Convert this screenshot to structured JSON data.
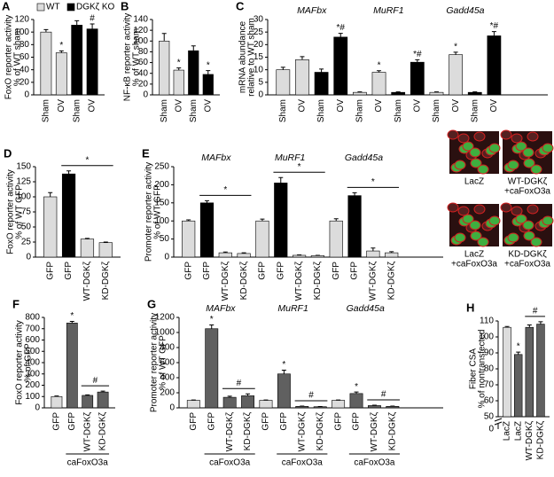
{
  "chart_data": [
    {
      "type": "bar",
      "panel": "A",
      "ylabel": [
        "FoxO reporter activity",
        "% of WT sham"
      ],
      "ylim": [
        0,
        120
      ],
      "yticks": [
        0,
        20,
        40,
        60,
        80,
        100,
        120
      ],
      "legend": [
        {
          "name": "WT",
          "color": "#dcdcdc"
        },
        {
          "name": "DGKζ KO",
          "color": "#000000"
        }
      ],
      "groups": [
        {
          "categories": [
            "Sham",
            "OV",
            "Sham",
            "OV"
          ],
          "values": [
            100,
            67,
            111,
            105
          ],
          "errors": [
            4,
            3,
            7,
            8
          ],
          "colors": [
            "#dcdcdc",
            "#dcdcdc",
            "#000000",
            "#000000"
          ],
          "markers": [
            null,
            "*",
            null,
            "#"
          ]
        }
      ]
    },
    {
      "type": "bar",
      "panel": "B",
      "ylabel": [
        "NF-κB reporter activity",
        "% of WT sham"
      ],
      "ylim": [
        0,
        140
      ],
      "yticks": [
        0,
        20,
        40,
        60,
        80,
        100,
        120,
        140
      ],
      "groups": [
        {
          "categories": [
            "Sham",
            "OV",
            "Sham",
            "OV"
          ],
          "values": [
            100,
            46,
            82,
            38
          ],
          "errors": [
            14,
            4,
            9,
            7
          ],
          "colors": [
            "#dcdcdc",
            "#dcdcdc",
            "#000000",
            "#000000"
          ],
          "markers": [
            null,
            "*",
            null,
            "*"
          ]
        }
      ]
    },
    {
      "type": "bar",
      "panel": "C",
      "ylabel": [
        "mRNA abundance",
        "relative to  WT sham"
      ],
      "ylim": [
        0,
        30
      ],
      "yticks": [
        0,
        5,
        10,
        15,
        20,
        25,
        30
      ],
      "groups": [
        {
          "name": "MAFbx",
          "categories": [
            "Sham",
            "OV",
            "Sham",
            "OV"
          ],
          "values": [
            10,
            14,
            9,
            23
          ],
          "errors": [
            1,
            1.2,
            1.3,
            1.5
          ],
          "colors": [
            "#dcdcdc",
            "#dcdcdc",
            "#000000",
            "#000000"
          ],
          "markers": [
            null,
            null,
            null,
            "*#"
          ]
        },
        {
          "name": "MuRF1",
          "categories": [
            "Sham",
            "OV",
            "Sham",
            "OV"
          ],
          "values": [
            1,
            9,
            1,
            13
          ],
          "errors": [
            0.2,
            0.6,
            0.2,
            1
          ],
          "colors": [
            "#dcdcdc",
            "#dcdcdc",
            "#000000",
            "#000000"
          ],
          "markers": [
            null,
            "*",
            null,
            "*#"
          ]
        },
        {
          "name": "Gadd45a",
          "categories": [
            "Sham",
            "OV",
            "Sham",
            "OV"
          ],
          "values": [
            1,
            16,
            1,
            23.5
          ],
          "errors": [
            0.2,
            1,
            0.2,
            1.7
          ],
          "colors": [
            "#dcdcdc",
            "#dcdcdc",
            "#000000",
            "#000000"
          ],
          "markers": [
            null,
            "*",
            null,
            "*#"
          ]
        }
      ]
    },
    {
      "type": "bar",
      "panel": "D",
      "ylabel": [
        "FoxO reporter activity",
        "% of WT GFP"
      ],
      "ylim": [
        0,
        150
      ],
      "yticks": [
        0,
        25,
        50,
        75,
        100,
        125,
        150
      ],
      "groups": [
        {
          "categories": [
            "GFP",
            "GFP",
            "WT-DGKζ",
            "KD-DGKζ"
          ],
          "values": [
            100,
            138,
            30,
            24
          ],
          "errors": [
            7,
            5,
            1,
            1
          ],
          "colors": [
            "#dcdcdc",
            "#000000",
            "#dcdcdc",
            "#dcdcdc"
          ],
          "brackets": [
            {
              "text": "*",
              "from": 1,
              "to": 3
            }
          ]
        }
      ]
    },
    {
      "type": "bar",
      "panel": "E",
      "ylabel": [
        "Promoter reporter activity",
        "% of WT GFP"
      ],
      "ylim": [
        0,
        250
      ],
      "yticks": [
        0,
        50,
        100,
        150,
        200,
        250
      ],
      "groups": [
        {
          "name": "MAFbx",
          "categories": [
            "GFP",
            "GFP",
            "WT-DGKζ",
            "KD-DGKζ"
          ],
          "values": [
            100,
            150,
            12,
            10
          ],
          "errors": [
            3,
            6,
            2,
            2
          ],
          "colors": [
            "#dcdcdc",
            "#000000",
            "#dcdcdc",
            "#dcdcdc"
          ],
          "brackets": [
            {
              "text": "*",
              "from": 1,
              "to": 3
            }
          ]
        },
        {
          "name": "MuRF1",
          "categories": [
            "GFP",
            "GFP",
            "WT-DGKζ",
            "KD-DGKζ"
          ],
          "values": [
            100,
            205,
            5,
            4
          ],
          "errors": [
            5,
            15,
            1,
            1
          ],
          "colors": [
            "#dcdcdc",
            "#000000",
            "#dcdcdc",
            "#dcdcdc"
          ],
          "brackets": [
            {
              "text": "*",
              "from": 1,
              "to": 3
            }
          ]
        },
        {
          "name": "Gadd45a",
          "categories": [
            "GFP",
            "GFP",
            "WT-DGKζ",
            "KD-DGKζ"
          ],
          "values": [
            100,
            170,
            17,
            12
          ],
          "errors": [
            6,
            8,
            8,
            3
          ],
          "colors": [
            "#dcdcdc",
            "#000000",
            "#dcdcdc",
            "#dcdcdc"
          ],
          "brackets": [
            {
              "text": "*",
              "from": 1,
              "to": 3
            }
          ]
        }
      ]
    },
    {
      "type": "bar",
      "panel": "F",
      "ylabel": [
        "FoxO reporter activity",
        "% of GFP"
      ],
      "ylim": [
        0,
        800
      ],
      "yticks": [
        0,
        100,
        200,
        300,
        400,
        500,
        600,
        700,
        800
      ],
      "groups": [
        {
          "categories": [
            "GFP",
            "GFP",
            "WT-DGKζ",
            "KD-DGKζ"
          ],
          "values": [
            100,
            750,
            110,
            140
          ],
          "errors": [
            5,
            15,
            5,
            8
          ],
          "colors": [
            "#dcdcdc",
            "#606060",
            "#606060",
            "#606060"
          ],
          "markers": [
            null,
            "*",
            null,
            null
          ],
          "brackets": [
            {
              "text": "#",
              "from": 2,
              "to": 3
            }
          ],
          "footer": "caFoxO3a"
        }
      ]
    },
    {
      "type": "bar",
      "panel": "G",
      "ylabel": [
        "Promoter reporter activity",
        "% of WT GFP"
      ],
      "ylim": [
        0,
        1200
      ],
      "yticks": [
        0,
        200,
        400,
        600,
        800,
        1000,
        1200
      ],
      "groups": [
        {
          "name": "MAFbx",
          "categories": [
            "GFP",
            "GFP",
            "WT-DGKζ",
            "KD-DGKζ"
          ],
          "values": [
            100,
            1050,
            140,
            160
          ],
          "errors": [
            5,
            50,
            15,
            25
          ],
          "colors": [
            "#dcdcdc",
            "#606060",
            "#606060",
            "#606060"
          ],
          "markers": [
            null,
            "*",
            null,
            null
          ],
          "brackets": [
            {
              "text": "#",
              "from": 2,
              "to": 3
            }
          ],
          "footer": "caFoxO3a"
        },
        {
          "name": "MuRF1",
          "categories": [
            "GFP",
            "GFP",
            "WT-DGKζ",
            "KD-DGKζ"
          ],
          "values": [
            100,
            450,
            20,
            15
          ],
          "errors": [
            5,
            50,
            3,
            3
          ],
          "colors": [
            "#dcdcdc",
            "#606060",
            "#606060",
            "#606060"
          ],
          "markers": [
            null,
            "*",
            null,
            null
          ],
          "brackets": [
            {
              "text": "#",
              "from": 2,
              "to": 3
            }
          ],
          "footer": "caFoxO3a"
        },
        {
          "name": "Gadd45a",
          "categories": [
            "GFP",
            "GFP",
            "WT-DGKζ",
            "KD-DGKζ"
          ],
          "values": [
            100,
            190,
            30,
            20
          ],
          "errors": [
            5,
            20,
            5,
            4
          ],
          "colors": [
            "#dcdcdc",
            "#606060",
            "#606060",
            "#606060"
          ],
          "markers": [
            null,
            "*",
            null,
            null
          ],
          "brackets": [
            {
              "text": "#",
              "from": 2,
              "to": 3
            }
          ],
          "footer": "caFoxO3a"
        }
      ]
    },
    {
      "type": "bar",
      "panel": "H",
      "ylabel": [
        "Fiber CSA",
        "% of nontransfected"
      ],
      "ylim": [
        50,
        110
      ],
      "yticks": [
        50,
        60,
        70,
        80,
        90,
        100,
        110
      ],
      "ybreak_label": "0",
      "images": [
        [
          "LacZ"
        ],
        [
          "WT-DGKζ",
          "+caFoxO3a"
        ],
        [
          "LacZ",
          "+caFoxO3a"
        ],
        [
          "KD-DGKζ",
          "+caFoxO3a"
        ]
      ],
      "groups": [
        {
          "categories": [
            "LacZ",
            "LacZ",
            "WT-DGKζ",
            "KD-DGKζ"
          ],
          "values": [
            106,
            89,
            106,
            108
          ],
          "errors": [
            0.5,
            1.5,
            1.5,
            1.5
          ],
          "colors": [
            "#dcdcdc",
            "#606060",
            "#606060",
            "#606060"
          ],
          "markers": [
            null,
            "*",
            null,
            null
          ],
          "brackets": [
            {
              "text": "#",
              "from": 2,
              "to": 3
            }
          ]
        }
      ]
    }
  ]
}
